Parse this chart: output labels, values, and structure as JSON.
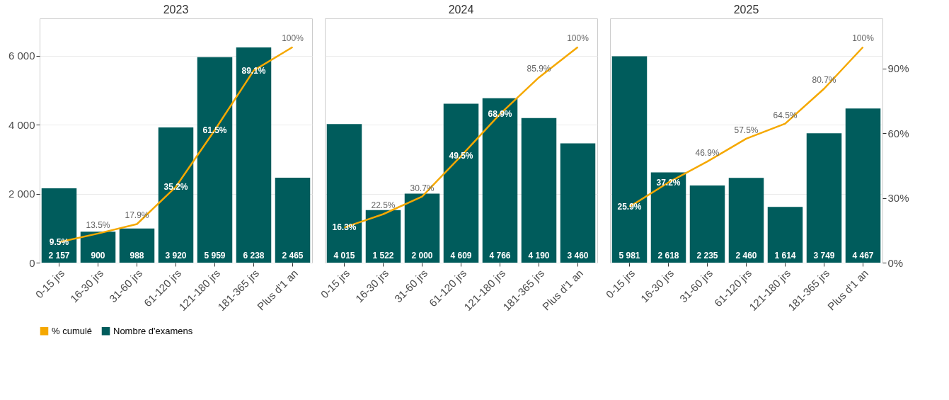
{
  "chart_data": [
    {
      "type": "bar",
      "title": "2023",
      "categories": [
        "0-15 jrs",
        "16-30 jrs",
        "31-60 jrs",
        "61-120 jrs",
        "121-180 jrs",
        "181-365 jrs",
        "Plus d'1 an"
      ],
      "ylim": [
        0,
        7080
      ],
      "yticks": [
        {
          "value": 0,
          "label": "0"
        },
        {
          "value": 2000,
          "label": "2 000"
        },
        {
          "value": 4000,
          "label": "4 000"
        },
        {
          "value": 6000,
          "label": "6 000"
        }
      ],
      "grid": "y",
      "legend": "bottom",
      "series": [
        {
          "name": "% cumulé",
          "type": "line",
          "axis": "y2",
          "color": "#f5a800",
          "values": [
            9.5,
            13.5,
            17.9,
            35.2,
            61.5,
            89.1,
            100
          ],
          "value_labels": [
            "9.5%",
            "13.5%",
            "17.9%",
            "35.2%",
            "61.5%",
            "89.1%",
            "100%"
          ]
        },
        {
          "name": "Nombre d'examens",
          "type": "bar",
          "color": "#005c5c",
          "values": [
            2157,
            900,
            988,
            3920,
            5959,
            6238,
            2465
          ],
          "value_labels": [
            "2 157",
            "900",
            "988",
            "3 920",
            "5 959",
            "6 238",
            "2 465"
          ]
        }
      ]
    },
    {
      "type": "bar",
      "title": "2024",
      "categories": [
        "0-15 jrs",
        "16-30 jrs",
        "31-60 jrs",
        "61-120 jrs",
        "121-180 jrs",
        "181-365 jrs",
        "Plus d'1 an"
      ],
      "ylim": [
        0,
        7080
      ],
      "tick_labels": "x",
      "grid": "y",
      "series": [
        {
          "type": "line",
          "axis": "y2",
          "color": "#f5a800",
          "values": [
            16.3,
            22.5,
            30.7,
            49.5,
            68.9,
            85.9,
            100
          ],
          "value_labels": [
            "16.3%",
            "22.5%",
            "30.7%",
            "49.5%",
            "68.9%",
            "85.9%",
            "100%"
          ]
        },
        {
          "type": "bar",
          "color": "#005c5c",
          "values": [
            4015,
            1522,
            2000,
            4609,
            4766,
            4190,
            3460
          ],
          "value_labels": [
            "4 015",
            "1 522",
            "2 000",
            "4 609",
            "4 766",
            "4 190",
            "3 460"
          ]
        }
      ]
    },
    {
      "type": "bar",
      "title": "2025",
      "categories": [
        "0-15 jrs",
        "16-30 jrs",
        "31-60 jrs",
        "61-120 jrs",
        "121-180 jrs",
        "181-365 jrs",
        "Plus d'1 an"
      ],
      "ylim": [
        0,
        7080
      ],
      "y2lim": [
        0,
        113.3
      ],
      "y2ticks": [
        {
          "value": 0,
          "label": "0%"
        },
        {
          "value": 30,
          "label": "30%"
        },
        {
          "value": 60,
          "label": "60%"
        },
        {
          "value": 90,
          "label": "90%"
        }
      ],
      "grid": "y",
      "series": [
        {
          "type": "line",
          "axis": "y2",
          "color": "#f5a800",
          "values": [
            25.9,
            37.2,
            46.9,
            57.5,
            64.5,
            80.7,
            100
          ],
          "value_labels": [
            "25.9%",
            "37.2%",
            "46.9%",
            "57.5%",
            "64.5%",
            "80.7%",
            "100%"
          ]
        },
        {
          "type": "bar",
          "color": "#005c5c",
          "values": [
            5981,
            2618,
            2235,
            2460,
            1614,
            3749,
            4467
          ],
          "value_labels": [
            "5 981",
            "2 618",
            "2 235",
            "2 460",
            "1 614",
            "3 749",
            "4 467"
          ]
        }
      ]
    }
  ]
}
